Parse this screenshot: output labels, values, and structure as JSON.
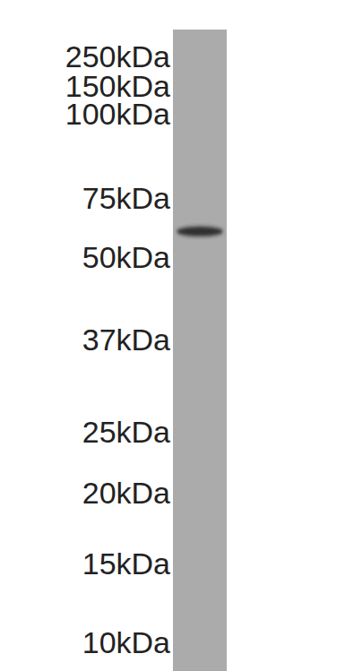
{
  "chart_data": {
    "type": "blot",
    "categories": [
      null
    ],
    "values": [
      60
    ],
    "color": "#2f2f2f",
    "log": "y",
    "grid": false,
    "ylim": [
      10,
      250
    ],
    "yticks": [
      {
        "value": 250,
        "label": "250kDa"
      },
      {
        "value": 150,
        "label": "150kDa"
      },
      {
        "value": 100,
        "label": "100kDa"
      },
      {
        "value": 75,
        "label": "75kDa"
      },
      {
        "value": 50,
        "label": "50kDa"
      },
      {
        "value": 37,
        "label": "37kDa"
      },
      {
        "value": 25,
        "label": "25kDa"
      },
      {
        "value": 20,
        "label": "20kDa"
      },
      {
        "value": 15,
        "label": "15kDa"
      },
      {
        "value": 10,
        "label": "10kDa"
      }
    ]
  }
}
